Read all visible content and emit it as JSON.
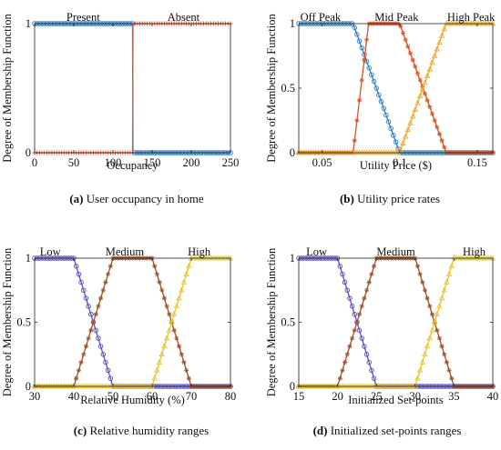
{
  "figure": {
    "captions": [
      {
        "letter": "(a)",
        "text": " User occupancy in home"
      },
      {
        "letter": "(b)",
        "text": " Utility price rates"
      },
      {
        "letter": "(c)",
        "text": " Relative humidity ranges"
      },
      {
        "letter": "(d)",
        "text": " Initialized set-points ranges"
      }
    ]
  },
  "chart_data": [
    {
      "type": "line",
      "ylabel": "Degree of Membership Function",
      "xlabel": "Occupancy",
      "xlim": [
        0,
        250
      ],
      "ylim": [
        0,
        1
      ],
      "xticks": [
        0,
        50,
        100,
        150,
        200,
        250
      ],
      "xtick_labels": [
        "0",
        "50",
        "100",
        "150",
        "200",
        "250"
      ],
      "yticks": [
        0,
        1
      ],
      "ytick_labels": [
        "0",
        "1"
      ],
      "annotations": [
        {
          "text": "Present",
          "x": 62,
          "y": 1
        },
        {
          "text": "Absent",
          "x": 190,
          "y": 1
        }
      ],
      "series": [
        {
          "color": "#1f77c4",
          "marker": "o",
          "x": [
            0,
            125,
            125.5,
            250
          ],
          "y": [
            1,
            1,
            0,
            0
          ]
        },
        {
          "color": "#e8542a",
          "marker": "+",
          "x": [
            0,
            125,
            125.5,
            250
          ],
          "y": [
            0,
            0,
            1,
            1
          ]
        }
      ]
    },
    {
      "type": "line",
      "ylabel": "Degree of Membership Function",
      "xlabel": "Utility Price ($)",
      "xlim": [
        0.035,
        0.16
      ],
      "ylim": [
        0,
        1
      ],
      "xticks": [
        0.05,
        0.1,
        0.15
      ],
      "xtick_labels": [
        "0.05",
        "0.1",
        "0.15"
      ],
      "yticks": [
        0,
        0.5,
        1
      ],
      "ytick_labels": [
        "0",
        "0.5",
        "1"
      ],
      "annotations": [
        {
          "text": "Off Peak",
          "x": 0.049,
          "y": 1
        },
        {
          "text": "Mid Peak",
          "x": 0.098,
          "y": 1
        },
        {
          "text": "High Peak",
          "x": 0.146,
          "y": 1
        }
      ],
      "series": [
        {
          "color": "#2f7fc1",
          "marker": "o",
          "x": [
            0.035,
            0.07,
            0.1,
            0.16
          ],
          "y": [
            1,
            1,
            0,
            0
          ]
        },
        {
          "color": "#d9532a",
          "marker": "*",
          "x": [
            0.035,
            0.07,
            0.08,
            0.1,
            0.13,
            0.16
          ],
          "y": [
            0,
            0,
            1,
            1,
            0,
            0
          ]
        },
        {
          "color": "#eda92b",
          "marker": "^",
          "x": [
            0.035,
            0.1,
            0.13,
            0.16
          ],
          "y": [
            0,
            0,
            1,
            1
          ]
        }
      ]
    },
    {
      "type": "line",
      "ylabel": "Degree of Membership Function",
      "xlabel": "Relative Humidity (%)",
      "xlim": [
        30,
        80
      ],
      "ylim": [
        0,
        1
      ],
      "xticks": [
        30,
        40,
        50,
        60,
        70,
        80
      ],
      "xtick_labels": [
        "30",
        "40",
        "50",
        "60",
        "70",
        "80"
      ],
      "yticks": [
        0,
        0.5,
        1
      ],
      "ytick_labels": [
        "0",
        "0.5",
        "1"
      ],
      "annotations": [
        {
          "text": "Low",
          "x": 34,
          "y": 1
        },
        {
          "text": "Medium",
          "x": 53,
          "y": 1
        },
        {
          "text": "High",
          "x": 72,
          "y": 1
        }
      ],
      "series": [
        {
          "color": "#5b4fc4",
          "marker": "o",
          "x": [
            30,
            40,
            50,
            80
          ],
          "y": [
            1,
            1,
            0,
            0
          ]
        },
        {
          "color": "#a0522d",
          "marker": "*",
          "x": [
            30,
            40,
            50,
            60,
            70,
            80
          ],
          "y": [
            0,
            0,
            1,
            1,
            0,
            0
          ]
        },
        {
          "color": "#e8c42a",
          "marker": "^",
          "x": [
            30,
            60,
            70,
            80
          ],
          "y": [
            0,
            0,
            1,
            1
          ]
        }
      ]
    },
    {
      "type": "line",
      "ylabel": "Degree of Membership Function",
      "xlabel": "Initialized Set-points",
      "xlim": [
        15,
        40
      ],
      "ylim": [
        0,
        1
      ],
      "xticks": [
        15,
        20,
        25,
        30,
        35,
        40
      ],
      "xtick_labels": [
        "15",
        "20",
        "25",
        "30",
        "35",
        "40"
      ],
      "yticks": [
        0,
        0.5,
        1
      ],
      "ytick_labels": [
        "0",
        "0.5",
        "1"
      ],
      "annotations": [
        {
          "text": "Low",
          "x": 17.3,
          "y": 1
        },
        {
          "text": "Medium",
          "x": 27.5,
          "y": 1
        },
        {
          "text": "High",
          "x": 37.6,
          "y": 1
        }
      ],
      "series": [
        {
          "color": "#5b4fc4",
          "marker": "o",
          "x": [
            15,
            20,
            25,
            40
          ],
          "y": [
            1,
            1,
            0,
            0
          ]
        },
        {
          "color": "#a0522d",
          "marker": "*",
          "x": [
            15,
            20,
            25,
            30,
            35,
            40
          ],
          "y": [
            0,
            0,
            1,
            1,
            0,
            0
          ]
        },
        {
          "color": "#e8c42a",
          "marker": "^",
          "x": [
            15,
            30,
            35,
            40
          ],
          "y": [
            0,
            0,
            1,
            1
          ]
        }
      ]
    }
  ]
}
